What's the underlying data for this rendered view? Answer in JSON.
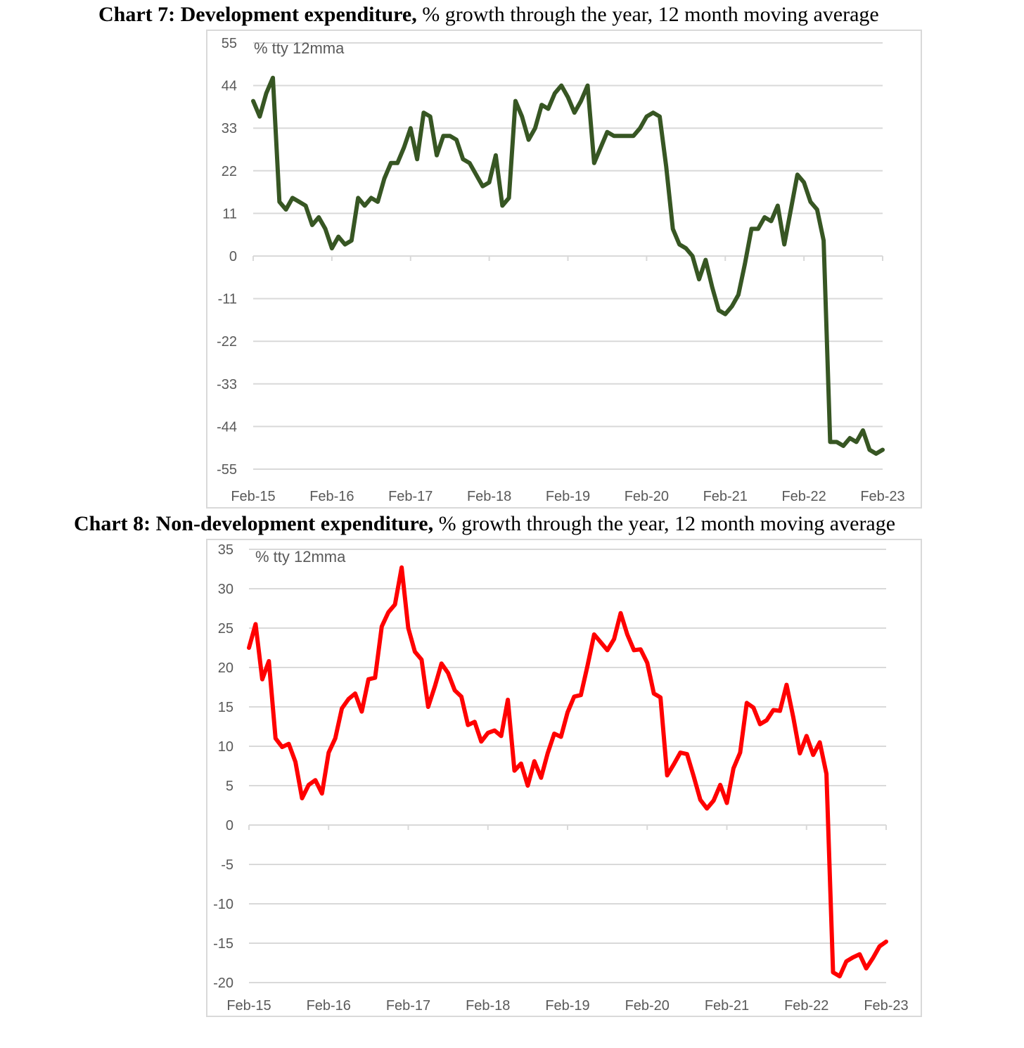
{
  "charts": [
    {
      "caption_bold": "Chart 7: Development expenditure,",
      "caption_rest": " % growth through the year, 12 month moving average"
    },
    {
      "caption_bold": "Chart 8: Non-development expenditure,",
      "caption_rest": " % growth through the year, 12 month moving average"
    }
  ],
  "chart_data": [
    {
      "type": "line",
      "title": "Chart 7: Development expenditure, % growth through the year, 12 month moving average",
      "annotation": "% tty 12mma",
      "xlabel": "",
      "ylabel": "",
      "x_tick_labels": [
        "Feb-15",
        "Feb-16",
        "Feb-17",
        "Feb-18",
        "Feb-19",
        "Feb-20",
        "Feb-21",
        "Feb-22",
        "Feb-23"
      ],
      "y_ticks": [
        55,
        44,
        33,
        22,
        11,
        0,
        -11,
        -22,
        -33,
        -44,
        -55
      ],
      "ylim": [
        -55,
        55
      ],
      "grid": true,
      "color": "#375623",
      "series": [
        {
          "x": [
            0,
            1,
            2,
            3,
            4,
            5,
            6,
            7,
            8,
            9,
            10,
            11,
            12,
            13,
            14,
            15,
            16,
            17,
            18,
            19,
            20,
            21,
            22,
            23,
            24,
            25,
            26,
            27,
            28,
            29,
            30,
            31,
            32,
            33,
            34,
            35,
            36,
            37,
            38,
            39,
            40,
            41,
            42,
            43,
            44,
            45,
            46,
            47,
            48,
            49,
            50,
            51,
            52,
            53,
            54,
            55,
            56,
            57,
            58,
            59,
            60,
            61,
            62,
            63,
            64,
            65,
            66,
            67,
            68,
            69,
            70,
            71,
            72,
            73,
            74,
            75,
            76,
            77,
            78,
            79,
            80,
            81,
            82,
            83,
            84,
            85,
            86,
            87,
            88,
            89,
            90,
            91,
            92,
            93,
            94,
            95,
            96
          ],
          "values": [
            40,
            36,
            42,
            46,
            14,
            12,
            15,
            14,
            13,
            8,
            10,
            7,
            2,
            5,
            3,
            4,
            15,
            13,
            15,
            14,
            20,
            24,
            24,
            28,
            33,
            25,
            37,
            36,
            26,
            31,
            31,
            30,
            25,
            24,
            21,
            18,
            19,
            26,
            13,
            15,
            40,
            36,
            30,
            33,
            39,
            38,
            42,
            44,
            41,
            37,
            40,
            44,
            24,
            28,
            32,
            31,
            31,
            31,
            31,
            33,
            36,
            37,
            36,
            23,
            7,
            3,
            2,
            0,
            -6,
            -1,
            -8,
            -14,
            -15,
            -13,
            -10,
            -2,
            7,
            7,
            10,
            9,
            13,
            3,
            12,
            21,
            19,
            14,
            12,
            4,
            -48,
            -48,
            -49,
            -47,
            -48,
            -45,
            -50,
            -51,
            -50
          ]
        }
      ]
    },
    {
      "type": "line",
      "title": "Chart 8: Non-development expenditure, % growth through the year, 12 month moving average",
      "annotation": "% tty 12mma",
      "xlabel": "",
      "ylabel": "",
      "x_tick_labels": [
        "Feb-15",
        "Feb-16",
        "Feb-17",
        "Feb-18",
        "Feb-19",
        "Feb-20",
        "Feb-21",
        "Feb-22",
        "Feb-23"
      ],
      "y_ticks": [
        35,
        30,
        25,
        20,
        15,
        10,
        5,
        0,
        -5,
        -10,
        -15,
        -20
      ],
      "ylim": [
        -20,
        35
      ],
      "grid": true,
      "color": "#ff0000",
      "series": [
        {
          "x": [
            0,
            1,
            2,
            3,
            4,
            5,
            6,
            7,
            8,
            9,
            10,
            11,
            12,
            13,
            14,
            15,
            16,
            17,
            18,
            19,
            20,
            21,
            22,
            23,
            24,
            25,
            26,
            27,
            28,
            29,
            30,
            31,
            32,
            33,
            34,
            35,
            36,
            37,
            38,
            39,
            40,
            41,
            42,
            43,
            44,
            45,
            46,
            47,
            48,
            49,
            50,
            51,
            52,
            53,
            54,
            55,
            56,
            57,
            58,
            59,
            60,
            61,
            62,
            63,
            64,
            65,
            66,
            67,
            68,
            69,
            70,
            71,
            72,
            73,
            74,
            75,
            76,
            77,
            78,
            79,
            80,
            81,
            82,
            83,
            84,
            85,
            86,
            87,
            88,
            89,
            90,
            91,
            92,
            93,
            94,
            95,
            96
          ],
          "values": [
            22.5,
            25.5,
            18.5,
            20.8,
            11,
            9.9,
            10.3,
            8,
            3.4,
            5.1,
            5.7,
            4,
            9.2,
            11,
            14.8,
            16,
            16.7,
            14.4,
            18.5,
            18.7,
            25.2,
            27,
            28,
            32.7,
            25,
            22,
            21,
            15,
            17.6,
            20.5,
            19.3,
            17.1,
            16.3,
            12.7,
            13.1,
            10.6,
            11.7,
            12,
            11.3,
            15.9,
            6.9,
            7.8,
            5,
            8.1,
            6,
            9.1,
            11.6,
            11.2,
            14.3,
            16.3,
            16.5,
            20.2,
            24.2,
            23.2,
            22.2,
            23.6,
            26.9,
            24.2,
            22.2,
            22.3,
            20.6,
            16.7,
            16.2,
            6.3,
            7.7,
            9.2,
            9,
            6.2,
            3.2,
            2.1,
            3.1,
            5.1,
            2.8,
            7.2,
            9.2,
            15.5,
            14.9,
            12.8,
            13.3,
            14.6,
            14.5,
            17.8,
            13.7,
            9.1,
            11.3,
            8.9,
            10.5,
            6.5,
            -18.7,
            -19.2,
            -17.3,
            -16.8,
            -16.4,
            -18.2,
            -16.9,
            -15.4,
            -14.8
          ]
        }
      ]
    }
  ]
}
